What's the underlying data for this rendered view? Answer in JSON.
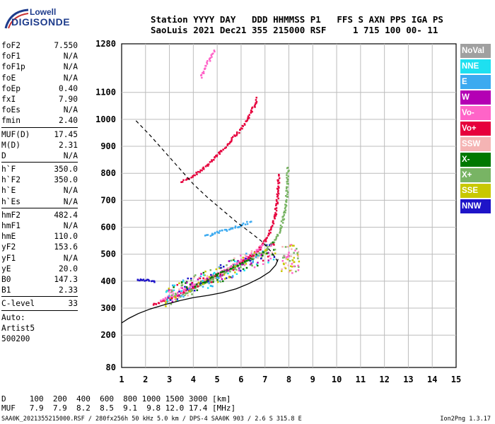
{
  "logo": {
    "line1": "Lowell",
    "line2": "DIGISONDE"
  },
  "header": {
    "row1": "Station YYYY DAY   DDD HHMMSS P1   FFS S AXN PPS IGA PS",
    "row2": "SaoLuis 2021 Dec21 355 215000 RSF     1 715 100 00- 11"
  },
  "params": {
    "group1": [
      {
        "name": "foF2",
        "value": "7.550"
      },
      {
        "name": "foF1",
        "value": "N/A"
      },
      {
        "name": "foF1p",
        "value": "N/A"
      },
      {
        "name": "foE",
        "value": "N/A"
      },
      {
        "name": "foEp",
        "value": "0.40"
      },
      {
        "name": "fxI",
        "value": "7.90"
      },
      {
        "name": "foEs",
        "value": "N/A"
      },
      {
        "name": "fmin",
        "value": "2.40"
      }
    ],
    "group2": [
      {
        "name": "MUF(D)",
        "value": "17.45"
      },
      {
        "name": "M(D)",
        "value": "2.31"
      },
      {
        "name": "D",
        "value": "N/A"
      }
    ],
    "group3": [
      {
        "name": "h`F",
        "value": "350.0"
      },
      {
        "name": "h`F2",
        "value": "350.0"
      },
      {
        "name": "h`E",
        "value": "N/A"
      },
      {
        "name": "h`Es",
        "value": "N/A"
      }
    ],
    "group4": [
      {
        "name": "hmF2",
        "value": "482.4"
      },
      {
        "name": "hmF1",
        "value": "N/A"
      },
      {
        "name": "hmE",
        "value": "110.0"
      },
      {
        "name": "yF2",
        "value": "153.6"
      },
      {
        "name": "yF1",
        "value": "N/A"
      },
      {
        "name": "yE",
        "value": "20.0"
      },
      {
        "name": "B0",
        "value": "147.3"
      },
      {
        "name": "B1",
        "value": "2.33"
      }
    ],
    "group5": [
      {
        "name": "C-level",
        "value": "33"
      }
    ],
    "auto": [
      "Auto:",
      "Artist5",
      "500200"
    ]
  },
  "legend": [
    {
      "label": "NoVal",
      "color": "#a0a0a0"
    },
    {
      "label": "NNE",
      "color": "#1ee0f0"
    },
    {
      "label": "E",
      "color": "#3caaf0"
    },
    {
      "label": "W",
      "color": "#b400b4"
    },
    {
      "label": "Vo-",
      "color": "#ff64c8"
    },
    {
      "label": "Vo+",
      "color": "#e6003c"
    },
    {
      "label": "SSW",
      "color": "#f5b4b4"
    },
    {
      "label": "X-",
      "color": "#007800"
    },
    {
      "label": "X+",
      "color": "#78b464"
    },
    {
      "label": "SSE",
      "color": "#c8c800"
    },
    {
      "label": "NNW",
      "color": "#1e14c8"
    }
  ],
  "footer": {
    "row1": "D     100  200  400  600  800 1000 1500 3000 [km]",
    "row2": "MUF   7.9  7.9  8.2  8.5  9.1  9.8 12.0 17.4 [MHz]"
  },
  "source_line": "SAA0K_2021355215000.RSF / 280fx256h 50 kHz 5.0 km / DPS-4 SAA0K 903 / 2.6 S 315.8 E",
  "version": "Ion2Png 1.3.17",
  "chart_data": {
    "type": "scatter",
    "xlim": [
      1,
      15
    ],
    "ylim": [
      80,
      1280
    ],
    "x_ticks": [
      "1",
      "2",
      "3",
      "4",
      "5",
      "6",
      "7",
      "8",
      "9",
      "10",
      "11",
      "12",
      "13",
      "14",
      "15"
    ],
    "y_ticks": [
      {
        "value": 80,
        "label": "80"
      },
      {
        "value": 200,
        "label": "200"
      },
      {
        "value": 300,
        "label": "300"
      },
      {
        "value": 400,
        "label": "400"
      },
      {
        "value": 500,
        "label": "500"
      },
      {
        "value": 600,
        "label": "600"
      },
      {
        "value": 700,
        "label": "700"
      },
      {
        "value": 800,
        "label": "800"
      },
      {
        "value": 900,
        "label": "900"
      },
      {
        "value": 1000,
        "label": "1000"
      },
      {
        "value": 1100,
        "label": "1100"
      },
      {
        "value": 1280,
        "label": "1280"
      }
    ],
    "grid": true,
    "true_height_profile": [
      [
        1.0,
        245
      ],
      [
        1.3,
        262
      ],
      [
        1.7,
        280
      ],
      [
        2.2,
        297
      ],
      [
        2.8,
        313
      ],
      [
        3.4,
        327
      ],
      [
        4.0,
        339
      ],
      [
        4.6,
        347
      ],
      [
        5.2,
        357
      ],
      [
        5.8,
        372
      ],
      [
        6.3,
        390
      ],
      [
        6.8,
        412
      ],
      [
        7.2,
        435
      ],
      [
        7.45,
        460
      ],
      [
        7.55,
        482
      ]
    ],
    "muf_curve": [
      [
        1.6,
        995
      ],
      [
        2.2,
        940
      ],
      [
        2.8,
        880
      ],
      [
        3.4,
        820
      ],
      [
        4.0,
        760
      ],
      [
        4.6,
        710
      ],
      [
        5.2,
        665
      ],
      [
        5.8,
        620
      ],
      [
        6.4,
        580
      ],
      [
        6.9,
        545
      ],
      [
        7.3,
        505
      ],
      [
        7.55,
        470
      ]
    ],
    "traces": [
      {
        "series": "Vo+",
        "points": [
          [
            2.3,
            316
          ],
          [
            2.8,
            331
          ],
          [
            3.3,
            350
          ],
          [
            3.8,
            372
          ],
          [
            4.3,
            395
          ],
          [
            4.8,
            418
          ],
          [
            5.3,
            440
          ],
          [
            5.8,
            463
          ],
          [
            6.3,
            490
          ],
          [
            6.7,
            520
          ],
          [
            7.0,
            555
          ],
          [
            7.25,
            600
          ],
          [
            7.4,
            650
          ],
          [
            7.5,
            720
          ],
          [
            7.55,
            800
          ]
        ]
      },
      {
        "series": "Vo-",
        "points": [
          [
            2.6,
            330
          ],
          [
            3.0,
            346
          ],
          [
            3.5,
            365
          ],
          [
            4.0,
            388
          ],
          [
            4.5,
            410
          ],
          [
            5.0,
            432
          ],
          [
            5.5,
            455
          ],
          [
            6.0,
            480
          ],
          [
            6.5,
            505
          ],
          [
            6.9,
            540
          ]
        ]
      },
      {
        "series": "X+",
        "points": [
          [
            3.4,
            346
          ],
          [
            3.9,
            370
          ],
          [
            4.4,
            392
          ],
          [
            4.9,
            415
          ],
          [
            5.4,
            438
          ],
          [
            5.9,
            462
          ],
          [
            6.4,
            485
          ],
          [
            6.9,
            510
          ],
          [
            7.3,
            545
          ],
          [
            7.6,
            590
          ],
          [
            7.85,
            680
          ],
          [
            7.9,
            760
          ],
          [
            7.93,
            830
          ]
        ]
      },
      {
        "series": "X-",
        "points": [
          [
            4.0,
            385
          ],
          [
            4.5,
            405
          ],
          [
            5.0,
            428
          ],
          [
            5.5,
            450
          ],
          [
            6.0,
            470
          ],
          [
            6.5,
            492
          ]
        ]
      },
      {
        "series": "Vo+",
        "points": [
          [
            3.5,
            770
          ],
          [
            3.9,
            790
          ],
          [
            4.3,
            815
          ],
          [
            4.7,
            845
          ],
          [
            5.1,
            880
          ],
          [
            5.5,
            920
          ],
          [
            5.9,
            960
          ],
          [
            6.2,
            1000
          ],
          [
            6.5,
            1050
          ],
          [
            6.65,
            1085
          ]
        ]
      },
      {
        "series": "Vo-",
        "points": [
          [
            4.3,
            1160
          ],
          [
            4.5,
            1200
          ],
          [
            4.75,
            1240
          ],
          [
            4.85,
            1260
          ]
        ]
      },
      {
        "series": "E",
        "points": [
          [
            4.5,
            570
          ],
          [
            5.0,
            585
          ],
          [
            5.5,
            595
          ],
          [
            6.0,
            610
          ],
          [
            6.4,
            625
          ]
        ]
      },
      {
        "series": "NNW",
        "points": [
          [
            1.6,
            405
          ],
          [
            2.0,
            408
          ],
          [
            2.4,
            398
          ]
        ]
      }
    ]
  }
}
